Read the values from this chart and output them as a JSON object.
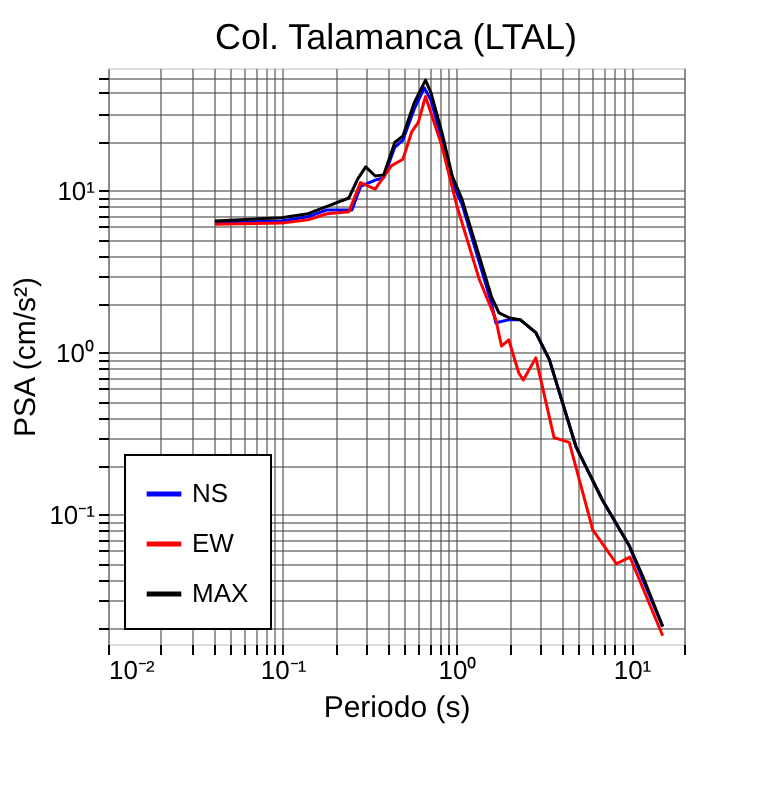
{
  "chart_data": {
    "type": "line",
    "title": "Col. Talamanca (LTAL)",
    "xlabel": "Periodo (s)",
    "ylabel": "PSA (cm/s²)",
    "log": "xy",
    "grid": true,
    "legend": "bottom left",
    "line_style": "solid",
    "marker": "none",
    "xlim": [
      0.01,
      20
    ],
    "ylim": [
      0.016,
      57
    ],
    "xticks": [
      {
        "value": 0.01,
        "label": "10⁻²"
      },
      {
        "value": 0.02,
        "label": null
      },
      {
        "value": 0.03,
        "label": null
      },
      {
        "value": 0.04,
        "label": null
      },
      {
        "value": 0.05,
        "label": null
      },
      {
        "value": 0.06,
        "label": null
      },
      {
        "value": 0.07,
        "label": null
      },
      {
        "value": 0.08,
        "label": null
      },
      {
        "value": 0.09,
        "label": null
      },
      {
        "value": 0.1,
        "label": "10⁻¹"
      },
      {
        "value": 0.2,
        "label": null
      },
      {
        "value": 0.3,
        "label": null
      },
      {
        "value": 0.4,
        "label": null
      },
      {
        "value": 0.5,
        "label": null
      },
      {
        "value": 0.6,
        "label": null
      },
      {
        "value": 0.7,
        "label": null
      },
      {
        "value": 0.8,
        "label": null
      },
      {
        "value": 0.9,
        "label": null
      },
      {
        "value": 1,
        "label": "10⁰"
      },
      {
        "value": 2,
        "label": null
      },
      {
        "value": 3,
        "label": null
      },
      {
        "value": 4,
        "label": null
      },
      {
        "value": 5,
        "label": null
      },
      {
        "value": 6,
        "label": null
      },
      {
        "value": 7,
        "label": null
      },
      {
        "value": 8,
        "label": null
      },
      {
        "value": 9,
        "label": null
      },
      {
        "value": 10,
        "label": "10¹"
      },
      {
        "value": 20,
        "label": null
      }
    ],
    "yticks": [
      {
        "value": 0.02,
        "label": null
      },
      {
        "value": 0.03,
        "label": null
      },
      {
        "value": 0.04,
        "label": null
      },
      {
        "value": 0.05,
        "label": null
      },
      {
        "value": 0.06,
        "label": null
      },
      {
        "value": 0.07,
        "label": null
      },
      {
        "value": 0.08,
        "label": null
      },
      {
        "value": 0.09,
        "label": null
      },
      {
        "value": 0.1,
        "label": "10⁻¹"
      },
      {
        "value": 0.2,
        "label": null
      },
      {
        "value": 0.3,
        "label": null
      },
      {
        "value": 0.4,
        "label": null
      },
      {
        "value": 0.5,
        "label": null
      },
      {
        "value": 0.6,
        "label": null
      },
      {
        "value": 0.7,
        "label": null
      },
      {
        "value": 0.8,
        "label": null
      },
      {
        "value": 0.9,
        "label": null
      },
      {
        "value": 1,
        "label": "10⁰"
      },
      {
        "value": 2,
        "label": null
      },
      {
        "value": 3,
        "label": null
      },
      {
        "value": 4,
        "label": null
      },
      {
        "value": 5,
        "label": null
      },
      {
        "value": 6,
        "label": null
      },
      {
        "value": 7,
        "label": null
      },
      {
        "value": 8,
        "label": null
      },
      {
        "value": 9,
        "label": null
      },
      {
        "value": 10,
        "label": "10¹"
      },
      {
        "value": 20,
        "label": null
      },
      {
        "value": 30,
        "label": null
      },
      {
        "value": 40,
        "label": null
      },
      {
        "value": 50,
        "label": null
      }
    ],
    "series": [
      {
        "name": "NS",
        "color": "#0000ff",
        "x": [
          0.041,
          0.099,
          0.14,
          0.18,
          0.25,
          0.28,
          0.34,
          0.38,
          0.44,
          0.49,
          0.57,
          0.65,
          0.71,
          0.82,
          0.94,
          1.07,
          1.58,
          1.67,
          2.0,
          2.3,
          2.83,
          3.38,
          4.8,
          6.8,
          9.75,
          11.6,
          15.1
        ],
        "values": [
          6.3,
          6.5,
          6.9,
          7.6,
          7.6,
          10.6,
          11.6,
          12.0,
          18.5,
          20.5,
          32,
          43,
          36,
          20.5,
          11.2,
          8.2,
          2.0,
          1.53,
          1.6,
          1.6,
          1.33,
          0.91,
          0.265,
          0.124,
          0.064,
          0.04,
          0.0205
        ]
      },
      {
        "name": "EW",
        "color": "#ff0000",
        "x": [
          0.041,
          0.099,
          0.14,
          0.18,
          0.24,
          0.28,
          0.34,
          0.42,
          0.49,
          0.55,
          0.6,
          0.66,
          0.82,
          1.0,
          1.34,
          1.67,
          1.8,
          1.98,
          2.26,
          2.4,
          2.83,
          3.6,
          4.4,
          6.0,
          8.2,
          9.8,
          15.1
        ],
        "values": [
          6.2,
          6.3,
          6.6,
          7.2,
          7.4,
          11.2,
          10.2,
          14.2,
          15.6,
          23,
          26.3,
          38,
          18.8,
          8.0,
          2.85,
          1.6,
          1.1,
          1.2,
          0.75,
          0.68,
          0.93,
          0.3,
          0.28,
          0.081,
          0.05,
          0.055,
          0.018
        ]
      },
      {
        "name": "MAX",
        "color": "#000000",
        "x": [
          0.041,
          0.099,
          0.14,
          0.18,
          0.24,
          0.27,
          0.3,
          0.34,
          0.38,
          0.44,
          0.49,
          0.57,
          0.66,
          0.71,
          0.82,
          0.94,
          1.07,
          1.58,
          1.74,
          2.0,
          2.3,
          2.83,
          3.38,
          4.8,
          6.8,
          9.75,
          11.6,
          15.1
        ],
        "values": [
          6.5,
          6.8,
          7.2,
          8.0,
          9.0,
          11.8,
          14.0,
          12.3,
          12.5,
          19.8,
          21.7,
          35,
          48,
          40,
          22.8,
          12.3,
          8.8,
          2.2,
          1.76,
          1.64,
          1.6,
          1.33,
          0.91,
          0.265,
          0.124,
          0.064,
          0.042,
          0.0205
        ]
      }
    ]
  }
}
